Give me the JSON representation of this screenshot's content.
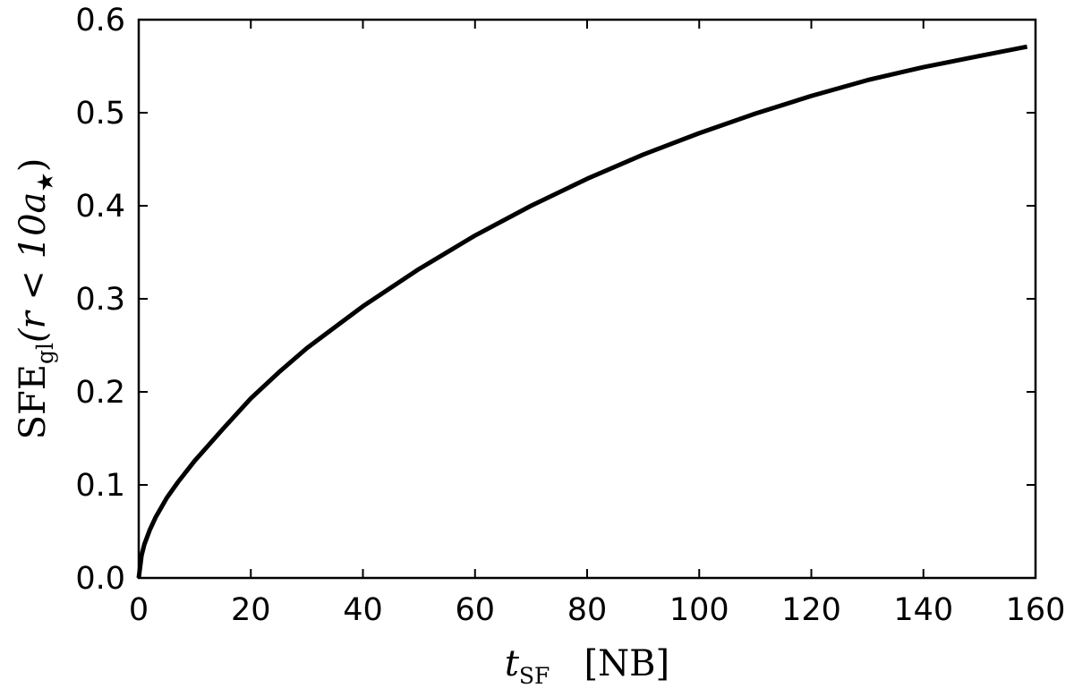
{
  "chart_data": {
    "type": "line",
    "title": "",
    "xlabel": {
      "main": "t",
      "sub": "SF",
      "unit": "[NB]"
    },
    "ylabel": {
      "main": "SFE",
      "sub": "gl",
      "rest": "(r < 10a",
      "sub2": "★",
      "close": ")"
    },
    "xlim": [
      0,
      160
    ],
    "ylim": [
      0.0,
      0.6
    ],
    "xticks": [
      0,
      20,
      40,
      60,
      80,
      100,
      120,
      140,
      160
    ],
    "yticks": [
      0.0,
      0.1,
      0.2,
      0.3,
      0.4,
      0.5,
      0.6
    ],
    "xtick_labels": [
      "0",
      "20",
      "40",
      "60",
      "80",
      "100",
      "120",
      "140",
      "160"
    ],
    "ytick_labels": [
      "0.0",
      "0.1",
      "0.2",
      "0.3",
      "0.4",
      "0.5",
      "0.6"
    ],
    "grid": false,
    "legend": "none",
    "line_color": "#000000",
    "series": [
      {
        "x": [
          0,
          0.5,
          1,
          2,
          3,
          5,
          7,
          10,
          15,
          20,
          25,
          30,
          40,
          50,
          60,
          70,
          80,
          90,
          100,
          110,
          120,
          130,
          140,
          150,
          158.5
        ],
        "y": [
          0.0,
          0.024,
          0.036,
          0.052,
          0.065,
          0.086,
          0.103,
          0.126,
          0.16,
          0.193,
          0.221,
          0.247,
          0.292,
          0.332,
          0.368,
          0.4,
          0.429,
          0.455,
          0.478,
          0.499,
          0.518,
          0.535,
          0.549,
          0.561,
          0.571
        ]
      }
    ]
  }
}
